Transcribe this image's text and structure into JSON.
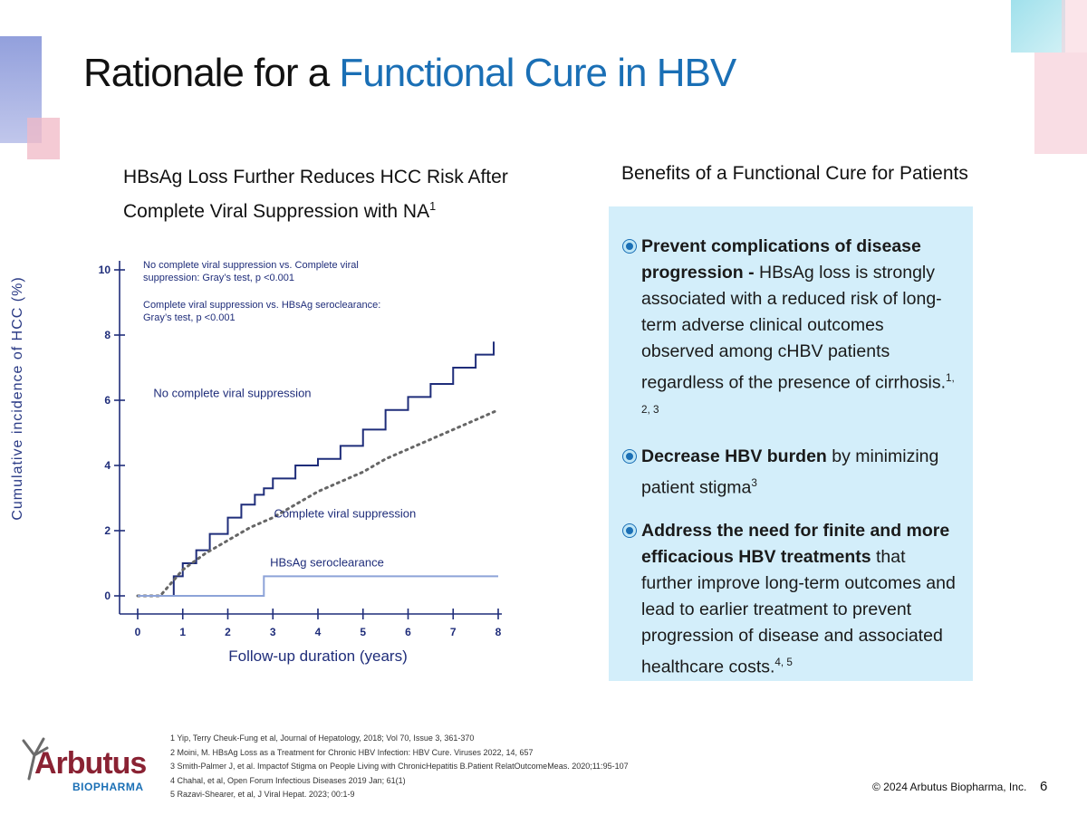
{
  "slide": {
    "title_main": "Rationale for a ",
    "title_accent": "Functional Cure in HBV",
    "chart_heading_line1": "HBsAg Loss Further Reduces HCC Risk After",
    "chart_heading_line2": "Complete Viral Suppression with NA",
    "chart_heading_sup": "1",
    "benefits_heading": "Benefits of a Functional Cure for Patients",
    "bullets": [
      {
        "bold": "Prevent complications of disease progression -",
        "text": " HBsAg loss is strongly associated with a reduced risk of long-term adverse clinical outcomes observed among cHBV patients regardless of the presence of cirrhosis.",
        "sup": "1, 2, 3"
      },
      {
        "bold": "Decrease HBV burden",
        "text": " by minimizing patient stigma",
        "sup": "3"
      },
      {
        "bold": "Address the need for finite and more efficacious HBV treatments",
        "text": " that further improve long-term outcomes and lead to earlier treatment to prevent progression of disease and associated healthcare costs.",
        "sup": "4, 5"
      }
    ],
    "references": [
      "1 Yip, Terry Cheuk-Fung et al, Journal of Hepatology, 2018; Vol 70, Issue 3, 361-370",
      "2 Moini, M. HBsAg Loss as a Treatment for Chronic HBV Infection:  HBV Cure. Viruses 2022, 14, 657",
      "3 Smith-Palmer J, et al. Impactof Stigma on People Living with ChronicHepatitis B.Patient RelatOutcomeMeas. 2020;11:95-107",
      "4 Chahal, et al, Open Forum Infectious Diseases 2019 Jan; 61(1)",
      "5 Razavi-Shearer, et al, J Viral Hepat. 2023; 00:1-9"
    ],
    "logo_main": "Arbutus",
    "logo_sub": "BIOPHARMA",
    "copyright": "© 2024 Arbutus Biopharma, Inc.",
    "page_number": "6"
  },
  "chart_data": {
    "type": "line",
    "xlabel": "Follow-up duration (years)",
    "ylabel": "Cumulative incidence of HCC (%)",
    "xlim": [
      0,
      8
    ],
    "ylim": [
      0,
      10
    ],
    "xticks": [
      0,
      1,
      2,
      3,
      4,
      5,
      6,
      7,
      8
    ],
    "yticks": [
      0,
      2,
      4,
      6,
      8,
      10
    ],
    "annotation_lines": [
      "No complete viral suppression vs. Complete viral",
      "suppression: Gray’s test, p <0.001",
      "Complete viral suppression vs. HBsAg seroclearance:",
      "Gray’s test, p <0.001"
    ],
    "series": [
      {
        "name": "No complete viral suppression",
        "color": "#1f2d7a",
        "style": "step",
        "x": [
          0,
          0.5,
          0.8,
          1.0,
          1.3,
          1.6,
          2.0,
          2.3,
          2.6,
          2.8,
          3.0,
          3.5,
          4.0,
          4.5,
          5.0,
          5.5,
          6.0,
          6.5,
          7.0,
          7.5,
          7.9
        ],
        "y": [
          0,
          0,
          0.6,
          1.0,
          1.4,
          1.9,
          2.4,
          2.8,
          3.1,
          3.3,
          3.6,
          4.0,
          4.2,
          4.6,
          5.1,
          5.7,
          6.1,
          6.5,
          7.0,
          7.4,
          7.8
        ]
      },
      {
        "name": "Complete viral suppression",
        "color": "#666666",
        "style": "dotted",
        "x": [
          0,
          0.5,
          1.0,
          1.5,
          2.0,
          2.5,
          3.0,
          3.5,
          4.0,
          4.5,
          5.0,
          5.5,
          6.0,
          6.5,
          7.0,
          7.5,
          8.0
        ],
        "y": [
          0,
          0,
          0.8,
          1.3,
          1.7,
          2.1,
          2.4,
          2.8,
          3.2,
          3.5,
          3.8,
          4.2,
          4.5,
          4.8,
          5.1,
          5.4,
          5.7
        ]
      },
      {
        "name": "HBsAg seroclearance",
        "color": "#8da3d8",
        "style": "step",
        "x": [
          0,
          2.8,
          2.8,
          8.0
        ],
        "y": [
          0,
          0,
          0.6,
          0.6
        ]
      }
    ]
  }
}
